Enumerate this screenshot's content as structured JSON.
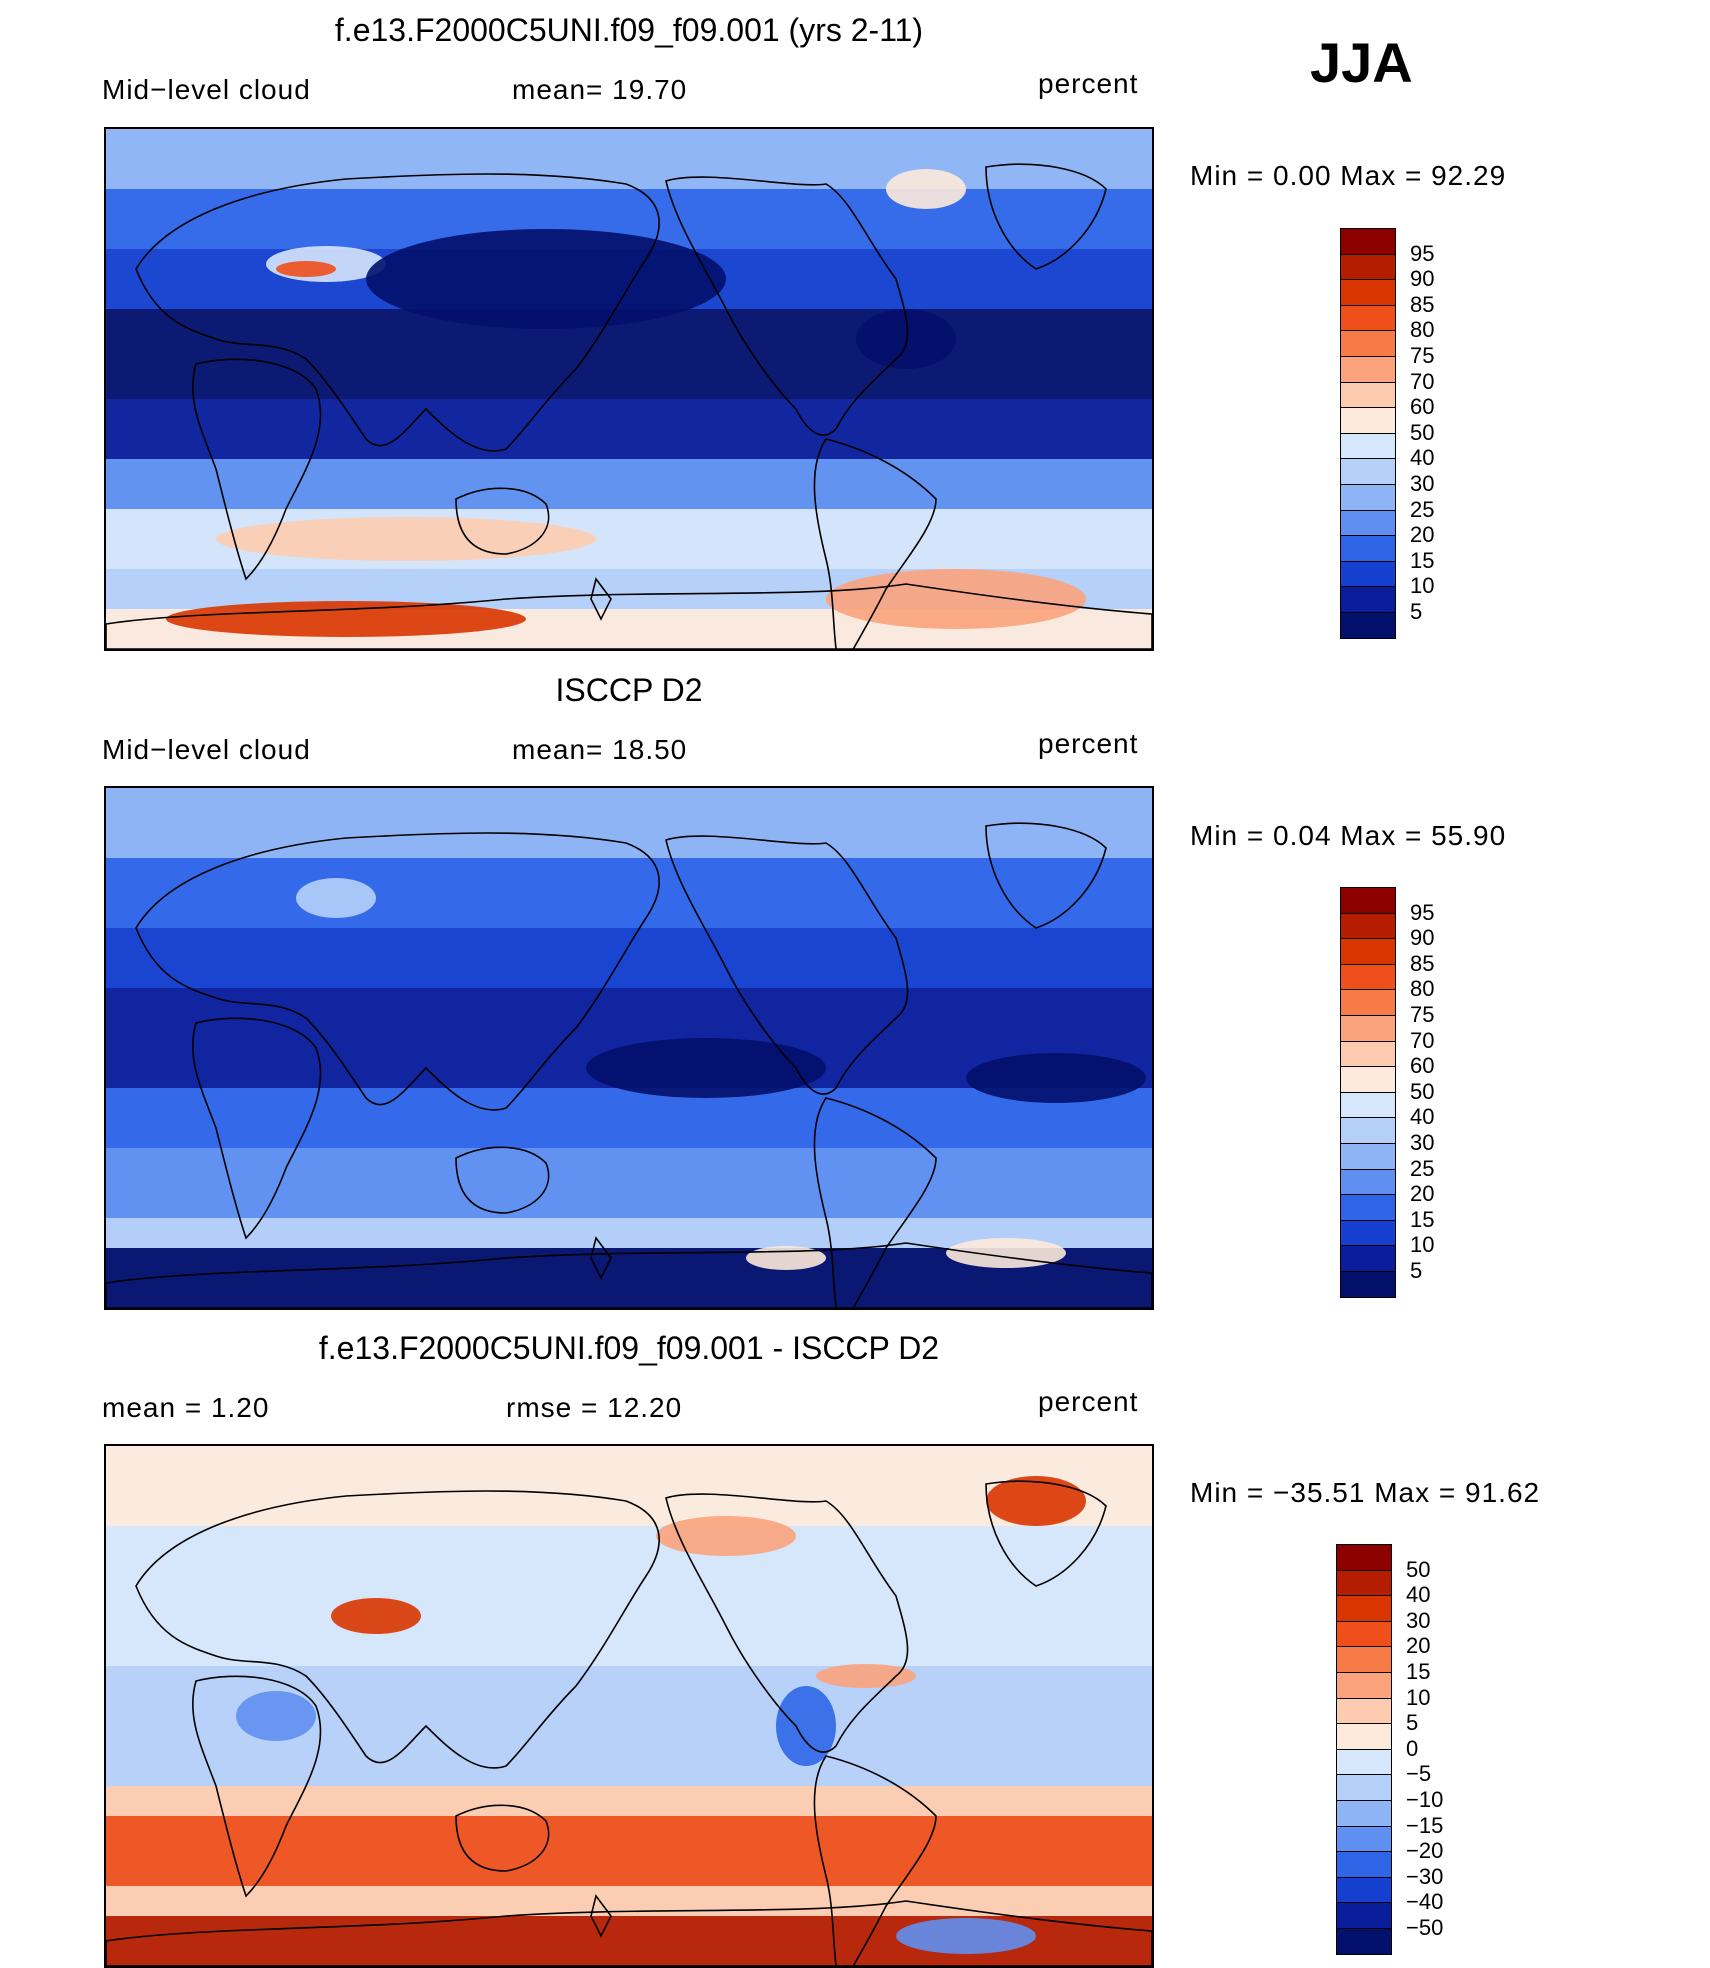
{
  "season": "JJA",
  "panels": [
    {
      "title": "f.e13.F2000C5UNI.f09_f09.001 (yrs 2-11)",
      "left_label": "Mid−level  cloud",
      "center_label": "mean=   19.70",
      "right_label": "percent",
      "minmax": "Min  =      0.00  Max  =     92.29",
      "colorbar": {
        "labels": [
          "95",
          "90",
          "85",
          "80",
          "75",
          "70",
          "60",
          "50",
          "40",
          "30",
          "25",
          "20",
          "15",
          "10",
          "5"
        ],
        "colors": [
          "#8c0000",
          "#b51d00",
          "#d93500",
          "#ef4f1a",
          "#f77b46",
          "#fba37c",
          "#fdccb0",
          "#fdeadc",
          "#d6e6fb",
          "#b5d0f9",
          "#8fb4f5",
          "#5f8ff0",
          "#2f66e8",
          "#143fcf",
          "#0a1d9a",
          "#03106c"
        ]
      },
      "map_type": "model"
    },
    {
      "title": "ISCCP D2",
      "left_label": "Mid−level  cloud",
      "center_label": "mean=   18.50",
      "right_label": "percent",
      "minmax": "Min  =      0.04  Max  =     55.90",
      "colorbar": {
        "labels": [
          "95",
          "90",
          "85",
          "80",
          "75",
          "70",
          "60",
          "50",
          "40",
          "30",
          "25",
          "20",
          "15",
          "10",
          "5"
        ],
        "colors": [
          "#8c0000",
          "#b51d00",
          "#d93500",
          "#ef4f1a",
          "#f77b46",
          "#fba37c",
          "#fdccb0",
          "#fdeadc",
          "#d6e6fb",
          "#b5d0f9",
          "#8fb4f5",
          "#5f8ff0",
          "#2f66e8",
          "#143fcf",
          "#0a1d9a",
          "#03106c"
        ]
      },
      "map_type": "obs"
    },
    {
      "title": "f.e13.F2000C5UNI.f09_f09.001 - ISCCP D2",
      "left_label": "mean  =      1.20",
      "center_label": "rmse  =    12.20",
      "right_label": "percent",
      "minmax": "Min  = −35.51  Max  =     91.62",
      "colorbar": {
        "labels": [
          "50",
          "40",
          "30",
          "20",
          "15",
          "10",
          "5",
          "0",
          "−5",
          "−10",
          "−15",
          "−20",
          "−30",
          "−40",
          "−50"
        ],
        "colors": [
          "#8c0000",
          "#b51d00",
          "#d93500",
          "#ef4f1a",
          "#f77b46",
          "#fba37c",
          "#fdccb0",
          "#fdeadc",
          "#d6e6fb",
          "#b5d0f9",
          "#8fb4f5",
          "#5f8ff0",
          "#2f66e8",
          "#143fcf",
          "#0a1d9a",
          "#03106c"
        ]
      },
      "map_type": "diff"
    }
  ]
}
